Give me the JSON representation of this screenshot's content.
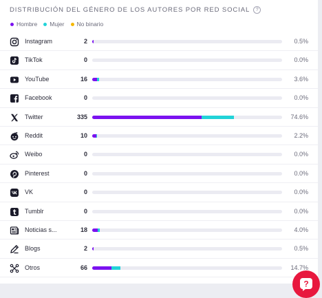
{
  "header": {
    "title": "Distribución del género de los autores por red social",
    "help_icon": "?"
  },
  "legend": [
    {
      "label": "Hombre",
      "color": "#7b12f0"
    },
    {
      "label": "Mujer",
      "color": "#22d3d8"
    },
    {
      "label": "No binario",
      "color": "#f5b700"
    }
  ],
  "rows": [
    {
      "name": "Instagram",
      "icon": "instagram-icon",
      "count": "2",
      "pct": "0.5%",
      "share": 0.005,
      "male": 0.005,
      "female": 0.0,
      "nb": 0.0
    },
    {
      "name": "TikTok",
      "icon": "tiktok-icon",
      "count": "0",
      "pct": "0.0%",
      "share": 0.0,
      "male": 0.0,
      "female": 0.0,
      "nb": 0.0
    },
    {
      "name": "YouTube",
      "icon": "youtube-icon",
      "count": "16",
      "pct": "3.6%",
      "share": 0.036,
      "male": 0.025,
      "female": 0.011,
      "nb": 0.0
    },
    {
      "name": "Facebook",
      "icon": "facebook-icon",
      "count": "0",
      "pct": "0.0%",
      "share": 0.0,
      "male": 0.0,
      "female": 0.0,
      "nb": 0.0
    },
    {
      "name": "Twitter",
      "icon": "twitter-x-icon",
      "count": "335",
      "pct": "74.6%",
      "share": 0.746,
      "male": 0.575,
      "female": 0.171,
      "nb": 0.0
    },
    {
      "name": "Reddit",
      "icon": "reddit-icon",
      "count": "10",
      "pct": "2.2%",
      "share": 0.022,
      "male": 0.02,
      "female": 0.002,
      "nb": 0.0
    },
    {
      "name": "Weibo",
      "icon": "weibo-icon",
      "count": "0",
      "pct": "0.0%",
      "share": 0.0,
      "male": 0.0,
      "female": 0.0,
      "nb": 0.0
    },
    {
      "name": "Pinterest",
      "icon": "pinterest-icon",
      "count": "0",
      "pct": "0.0%",
      "share": 0.0,
      "male": 0.0,
      "female": 0.0,
      "nb": 0.0
    },
    {
      "name": "VK",
      "icon": "vk-icon",
      "count": "0",
      "pct": "0.0%",
      "share": 0.0,
      "male": 0.0,
      "female": 0.0,
      "nb": 0.0
    },
    {
      "name": "Tumblr",
      "icon": "tumblr-icon",
      "count": "0",
      "pct": "0.0%",
      "share": 0.0,
      "male": 0.0,
      "female": 0.0,
      "nb": 0.0
    },
    {
      "name": "Noticias s...",
      "icon": "news-icon",
      "count": "18",
      "pct": "4.0%",
      "share": 0.04,
      "male": 0.03,
      "female": 0.01,
      "nb": 0.0
    },
    {
      "name": "Blogs",
      "icon": "blog-icon",
      "count": "2",
      "pct": "0.5%",
      "share": 0.005,
      "male": 0.005,
      "female": 0.0,
      "nb": 0.0
    },
    {
      "name": "Otros",
      "icon": "others-icon",
      "count": "66",
      "pct": "14.7%",
      "share": 0.147,
      "male": 0.1,
      "female": 0.047,
      "nb": 0.0
    }
  ],
  "help_button": {
    "icon": "help-chat-icon"
  }
}
